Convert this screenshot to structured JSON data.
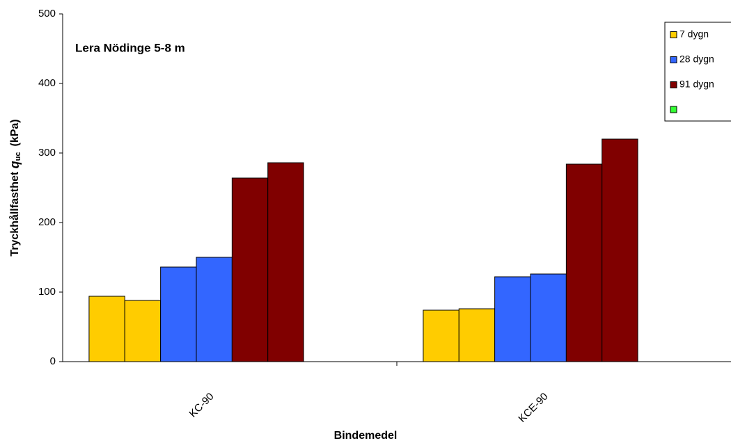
{
  "chart_data": {
    "type": "bar",
    "title": "Lera Nödinge 5-8 m",
    "x_label": "Bindemedel",
    "y_label": {
      "text": "Tryckhållfasthet",
      "symbol": "q",
      "subscript": "uc",
      "unit": "(kPa)"
    },
    "categories": [
      "KC-90",
      "KCE-90"
    ],
    "series": [
      {
        "name": "7 dygn",
        "color": "#ffcc00",
        "values": [
          [
            94,
            88
          ],
          [
            74,
            76
          ]
        ]
      },
      {
        "name": "28 dygn",
        "color": "#3366ff",
        "values": [
          [
            136,
            150
          ],
          [
            122,
            126
          ]
        ]
      },
      {
        "name": "91 dygn",
        "color": "#800000",
        "values": [
          [
            264,
            286
          ],
          [
            284,
            320
          ]
        ]
      }
    ],
    "ylim": [
      0,
      500
    ],
    "yticks": [
      0,
      100,
      200,
      300,
      400,
      500
    ],
    "grid": false,
    "legend": "top-right"
  }
}
